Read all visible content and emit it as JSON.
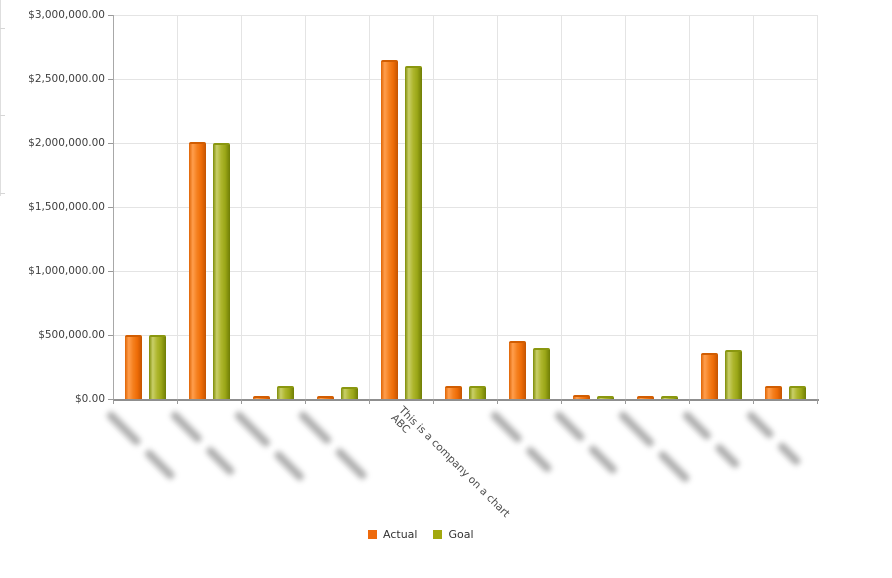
{
  "chart_data": {
    "type": "bar",
    "title": "",
    "xlabel": "",
    "ylabel": "",
    "grid": true,
    "y_axis": {
      "min": 0,
      "max": 3000000,
      "tick_interval": 500000,
      "tick_labels": [
        "$3,000,000.00",
        "$2,500,000.00",
        "$2,000,000.00",
        "$1,500,000.00",
        "$1,000,000.00",
        "$500,000.00",
        "$0.00"
      ]
    },
    "categories": [
      {
        "label": "",
        "blurred": true
      },
      {
        "label": "",
        "blurred": true
      },
      {
        "label": "",
        "blurred": true
      },
      {
        "label": "",
        "blurred": true
      },
      {
        "label": "ABC",
        "annotation": "This is a company on a chart",
        "blurred": false
      },
      {
        "label": "",
        "blurred": false
      },
      {
        "label": "",
        "blurred": true
      },
      {
        "label": "",
        "blurred": true
      },
      {
        "label": "",
        "blurred": true
      },
      {
        "label": "",
        "blurred": true
      },
      {
        "label": "",
        "blurred": true
      }
    ],
    "series": [
      {
        "name": "Actual",
        "color": "#ee6a0c",
        "values": [
          500000,
          2010000,
          25000,
          25000,
          2650000,
          100000,
          450000,
          35000,
          25000,
          360000,
          100000
        ]
      },
      {
        "name": "Goal",
        "color": "#a2a80e",
        "values": [
          500000,
          2000000,
          100000,
          90000,
          2600000,
          100000,
          400000,
          25000,
          20000,
          380000,
          100000
        ]
      }
    ],
    "legend": {
      "position": "bottom",
      "items": [
        {
          "label": "Actual",
          "color": "#ee6a0c"
        },
        {
          "label": "Goal",
          "color": "#a2a80e"
        }
      ]
    }
  }
}
